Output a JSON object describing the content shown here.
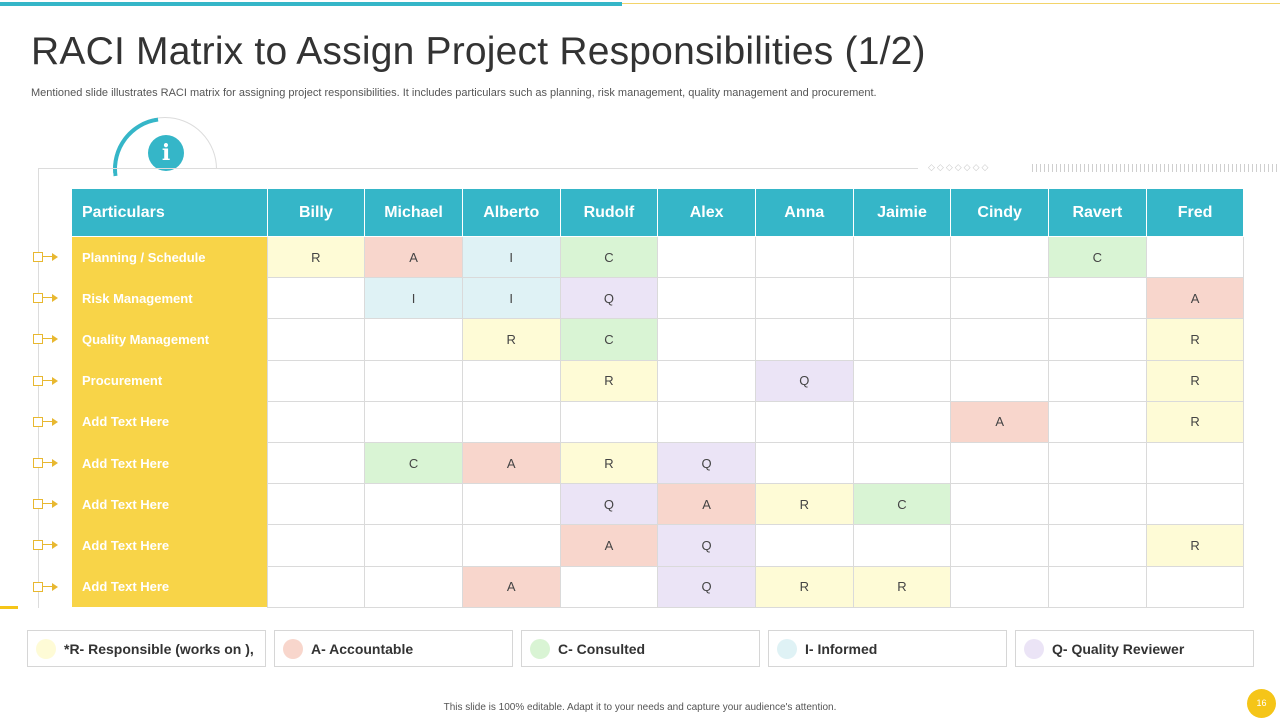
{
  "title": "RACI Matrix to Assign Project Responsibilities (1/2)",
  "subtitle": "Mentioned slide illustrates RACI matrix for assigning project responsibilities. It includes particulars such as planning, risk management, quality management and procurement.",
  "info_glyph": "i",
  "table": {
    "header_first": "Particulars",
    "columns": [
      "Billy",
      "Michael",
      "Alberto",
      "Rudolf",
      "Alex",
      "Anna",
      "Jaimie",
      "Cindy",
      "Ravert",
      "Fred"
    ],
    "rows": [
      {
        "label": "Planning / Schedule",
        "cells": [
          "R",
          "A",
          "I",
          "C",
          "",
          "",
          "",
          "",
          "C",
          ""
        ]
      },
      {
        "label": "Risk Management",
        "cells": [
          "",
          "I",
          "I",
          "Q",
          "",
          "",
          "",
          "",
          "",
          "A"
        ]
      },
      {
        "label": "Quality Management",
        "cells": [
          "",
          "",
          "R",
          "C",
          "",
          "",
          "",
          "",
          "",
          "R"
        ]
      },
      {
        "label": "Procurement",
        "cells": [
          "",
          "",
          "",
          "R",
          "",
          "Q",
          "",
          "",
          "",
          "R"
        ]
      },
      {
        "label": "Add Text Here",
        "cells": [
          "",
          "",
          "",
          "",
          "",
          "",
          "",
          "A",
          "",
          "R"
        ]
      },
      {
        "label": "Add Text Here",
        "cells": [
          "",
          "C",
          "A",
          "R",
          "Q",
          "",
          "",
          "",
          "",
          ""
        ]
      },
      {
        "label": "Add Text Here",
        "cells": [
          "",
          "",
          "",
          "Q",
          "A",
          "R",
          "C",
          "",
          "",
          ""
        ]
      },
      {
        "label": "Add Text Here",
        "cells": [
          "",
          "",
          "",
          "A",
          "Q",
          "",
          "",
          "",
          "",
          "R"
        ]
      },
      {
        "label": "Add Text Here",
        "cells": [
          "",
          "",
          "A",
          "",
          "Q",
          "R",
          "R",
          "",
          "",
          ""
        ]
      }
    ]
  },
  "legend": [
    {
      "key": "R",
      "label": "*R- Responsible (works on ),",
      "color": "#fefbd6"
    },
    {
      "key": "A",
      "label": "A- Accountable",
      "color": "#f8d6cc"
    },
    {
      "key": "C",
      "label": "C- Consulted",
      "color": "#d9f4d4"
    },
    {
      "key": "I",
      "label": "I- Informed",
      "color": "#dff2f5"
    },
    {
      "key": "Q",
      "label": "Q- Quality Reviewer",
      "color": "#ebe4f6"
    }
  ],
  "colors": {
    "header": "#35b6c8",
    "row_label": "#f8d448",
    "accent_yellow": "#f5c518"
  },
  "footer": "This slide is 100% editable.  Adapt it to your needs and capture your audience's attention.",
  "page_number": "16"
}
